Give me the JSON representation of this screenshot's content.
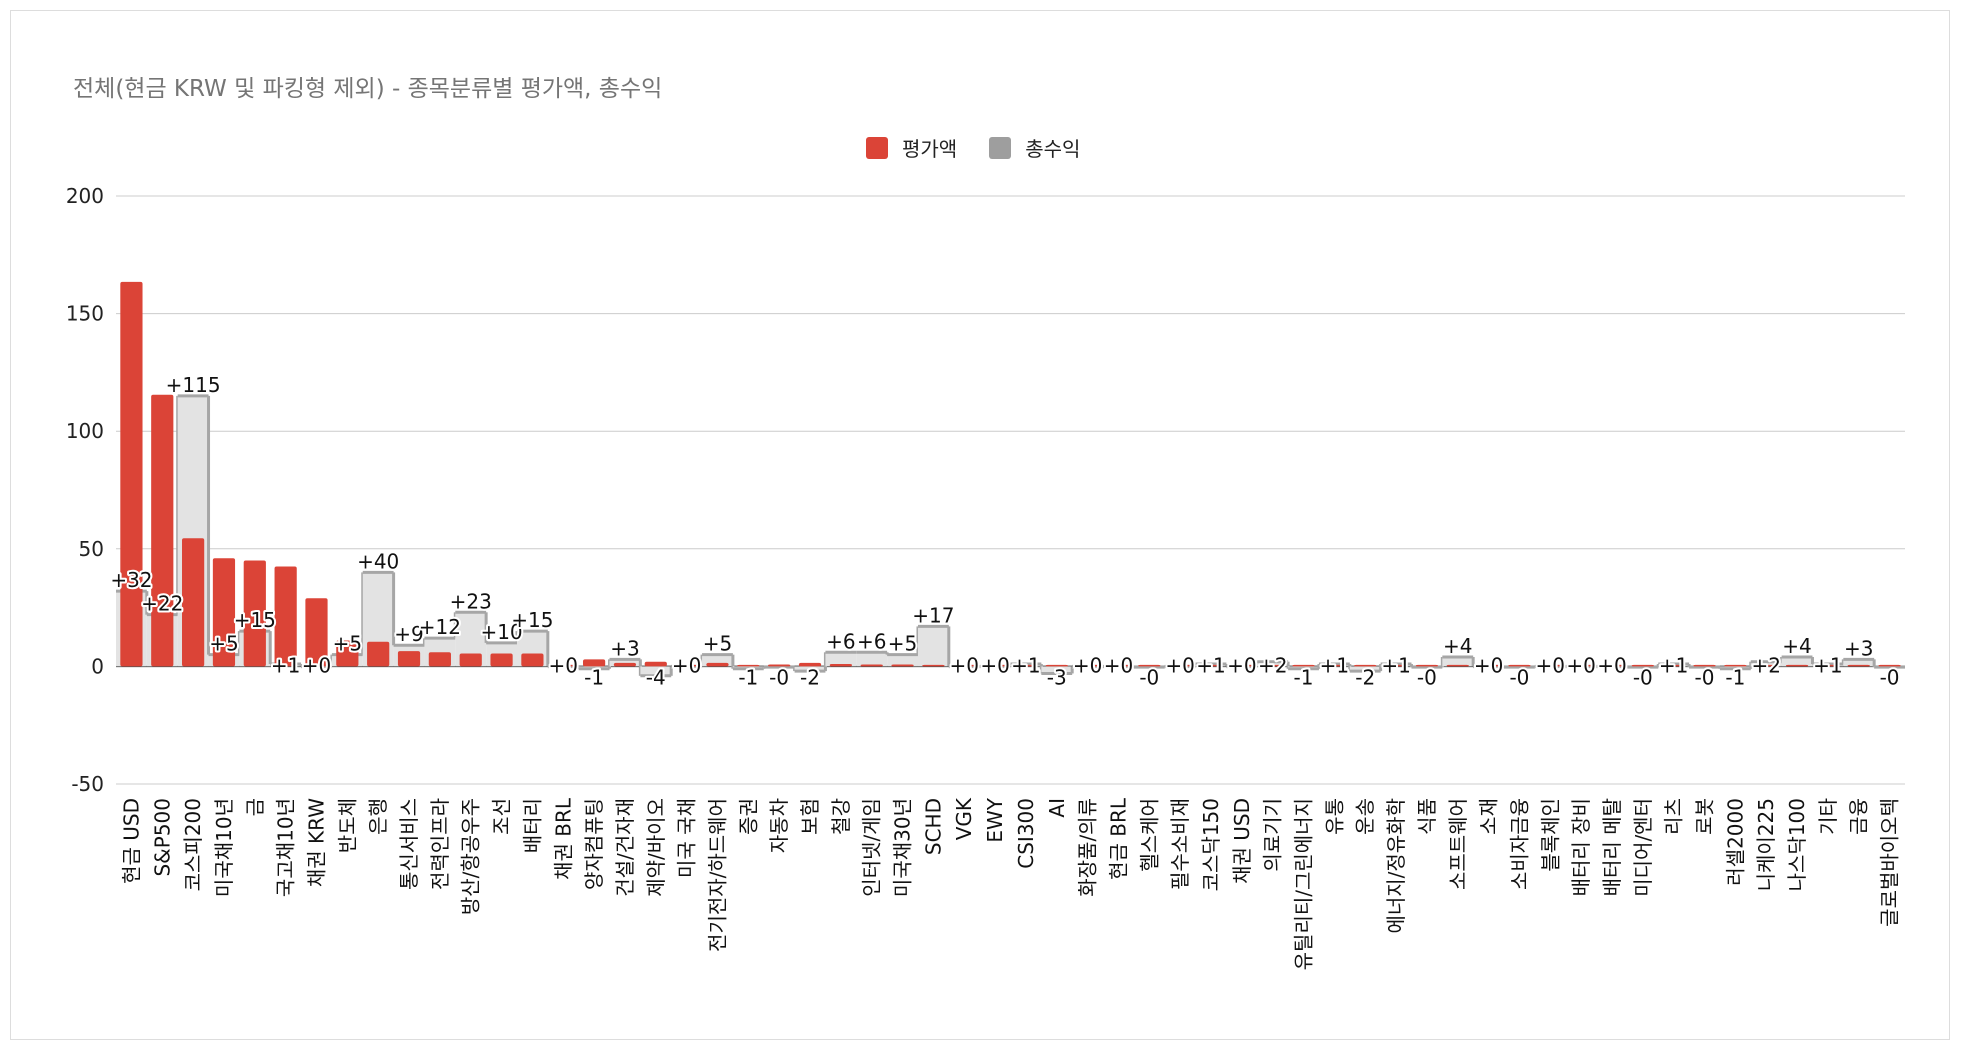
{
  "chart_data": {
    "type": "bar",
    "title": "전체(현금 KRW 및 파킹형 제외) - 종목분류별 평가액, 총수익",
    "ylim": [
      -50,
      200
    ],
    "yticks": [
      "200",
      "150",
      "100",
      "50",
      "0",
      "-50"
    ],
    "grid": true,
    "legend_position": "top",
    "categories": [
      "현금 USD",
      "S&P500",
      "코스피200",
      "미국채10년",
      "금",
      "국고채10년",
      "채권 KRW",
      "반도체",
      "은행",
      "통신서비스",
      "전력인프라",
      "방산/항공우주",
      "조선",
      "배터리",
      "채권 BRL",
      "양자컴퓨팅",
      "건설/건자재",
      "제약/바이오",
      "미국 국채",
      "전기전자/하드웨어",
      "증권",
      "자동차",
      "보험",
      "철강",
      "인터넷/게임",
      "미국채30년",
      "SCHD",
      "VGK",
      "EWY",
      "CSI300",
      "AI",
      "화장품/의류",
      "현금 BRL",
      "헬스케어",
      "필수소비재",
      "코스닥150",
      "채권 USD",
      "의료기기",
      "유틸리티/그린에너지",
      "유통",
      "운송",
      "에너지/정유화학",
      "식품",
      "소프트웨어",
      "소재",
      "소비자금융",
      "블록체인",
      "배터리 장비",
      "배터리 메탈",
      "미디어/엔터",
      "리츠",
      "로봇",
      "러셀2000",
      "니케이225",
      "나스닥100",
      "기타",
      "금융",
      "글로벌바이오텍"
    ],
    "series": [
      {
        "name": "평가액",
        "color": "#db4437",
        "values": [
          163.5,
          115.5,
          54.5,
          46,
          45,
          42.5,
          29,
          11,
          10.5,
          6.5,
          6,
          5.5,
          5.5,
          5.5,
          0.2,
          3,
          1.5,
          2,
          0.5,
          1.5,
          0.3,
          0.8,
          1.5,
          1,
          0.8,
          0.8,
          0.3,
          0.1,
          0.1,
          0.5,
          0.3,
          0.2,
          0.2,
          0.1,
          0.1,
          0.5,
          0.2,
          0.3,
          0.1,
          0.1,
          0.1,
          0.1,
          0.1,
          0.1,
          0.1,
          0.1,
          0.1,
          0.1,
          0.1,
          0.1,
          0.1,
          0.1,
          0.1,
          0.1,
          0.1,
          0.1,
          0.1,
          0.1
        ]
      },
      {
        "name": "총수익",
        "color": "#9e9e9e",
        "values": [
          32,
          22,
          115,
          5,
          15,
          1,
          0,
          5,
          40,
          9,
          12,
          23,
          10,
          15,
          0,
          -1,
          3,
          -4,
          0,
          5,
          -1,
          -0.3,
          -2,
          6,
          6,
          5,
          17,
          0,
          0,
          1,
          -3,
          0,
          0,
          -0.3,
          0,
          1,
          0,
          2,
          -1,
          1,
          -2,
          1,
          -0.3,
          4,
          0,
          -0.3,
          0,
          0,
          0,
          -0.3,
          1,
          -0.3,
          -1,
          2,
          4,
          1,
          3,
          -0.3
        ]
      }
    ],
    "data_labels": [
      "+32",
      "+22",
      "+115",
      "+5",
      "+15",
      "+1",
      "+0",
      "+5",
      "+40",
      "+9",
      "+12",
      "+23",
      "+10",
      "+15",
      "+0",
      "-1",
      "+3",
      "-4",
      "+0",
      "+5",
      "-1",
      "-0",
      "-2",
      "+6",
      "+6",
      "+5",
      "+17",
      "+0",
      "+0",
      "+1",
      "-3",
      "+0",
      "+0",
      "-0",
      "+0",
      "+1",
      "+0",
      "+2",
      "-1",
      "+1",
      "-2",
      "+1",
      "-0",
      "+4",
      "+0",
      "-0",
      "+0",
      "+0",
      "+0",
      "-0",
      "+1",
      "-0",
      "-1",
      "+2",
      "+4",
      "+1",
      "+3",
      "-0"
    ]
  }
}
